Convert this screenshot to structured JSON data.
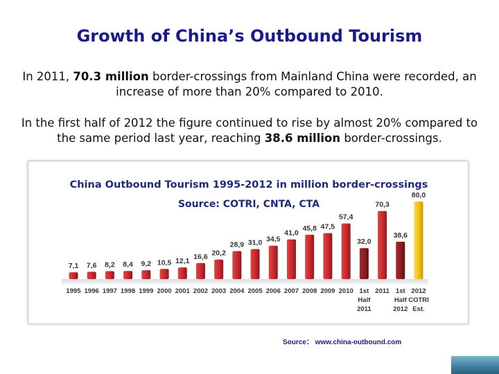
{
  "page": {
    "title": "Growth of China’s Outbound Tourism",
    "p1": {
      "pre": "In 2011, ",
      "bold": "70.3 million",
      "post": " border-crossings from Mainland China were recorded, an increase of more than 20% compared to 2010."
    },
    "p2": {
      "pre": "In the first half of 2012 the figure continued to rise by almost 20% compared to the same period last year, reaching ",
      "bold": "38.6 million",
      "post": " border-crossings."
    },
    "source_note": "Source： www.china-outbound.com"
  },
  "chart_data": {
    "type": "bar",
    "title": "China Outbound Tourism 1995-2012 in million border-crossings",
    "subtitle": "Source: COTRI, CNTA, CTA",
    "categories": [
      [
        "1995"
      ],
      [
        "1996"
      ],
      [
        "1997"
      ],
      [
        "1998"
      ],
      [
        "1999"
      ],
      [
        "2000"
      ],
      [
        "2001"
      ],
      [
        "2002"
      ],
      [
        "2003"
      ],
      [
        "2004"
      ],
      [
        "2005"
      ],
      [
        "2006"
      ],
      [
        "2007"
      ],
      [
        "2008"
      ],
      [
        "2009"
      ],
      [
        "2010"
      ],
      [
        "1st",
        "Half",
        "2011"
      ],
      [
        "2011"
      ],
      [
        "1st",
        "Half",
        "2012"
      ],
      [
        "2012",
        "COTRI",
        "Est."
      ]
    ],
    "values": [
      7.1,
      7.6,
      8.2,
      8.4,
      9.2,
      10.5,
      12.1,
      16.6,
      20.2,
      28.9,
      31.0,
      34.5,
      41.0,
      45.8,
      47.5,
      57.4,
      32.0,
      70.3,
      38.6,
      80.0
    ],
    "labels": [
      "7,1",
      "7,6",
      "8,2",
      "8,4",
      "9,2",
      "10,5",
      "12,1",
      "16,6",
      "20,2",
      "28,9",
      "31,0",
      "34,5",
      "41,0",
      "45,8",
      "47,5",
      "57,4",
      "32,0",
      "70,3",
      "38,6",
      "80,0"
    ],
    "bar_kinds": [
      "normal",
      "normal",
      "normal",
      "normal",
      "normal",
      "normal",
      "normal",
      "normal",
      "normal",
      "normal",
      "normal",
      "normal",
      "normal",
      "normal",
      "normal",
      "normal",
      "dark",
      "normal",
      "dark",
      "estimate"
    ],
    "ylim": [
      0,
      80
    ],
    "colors": {
      "normal": "#c8282e",
      "dark": "#8a1e20",
      "estimate": "#f2c10f",
      "title": "#1f2a78"
    }
  }
}
